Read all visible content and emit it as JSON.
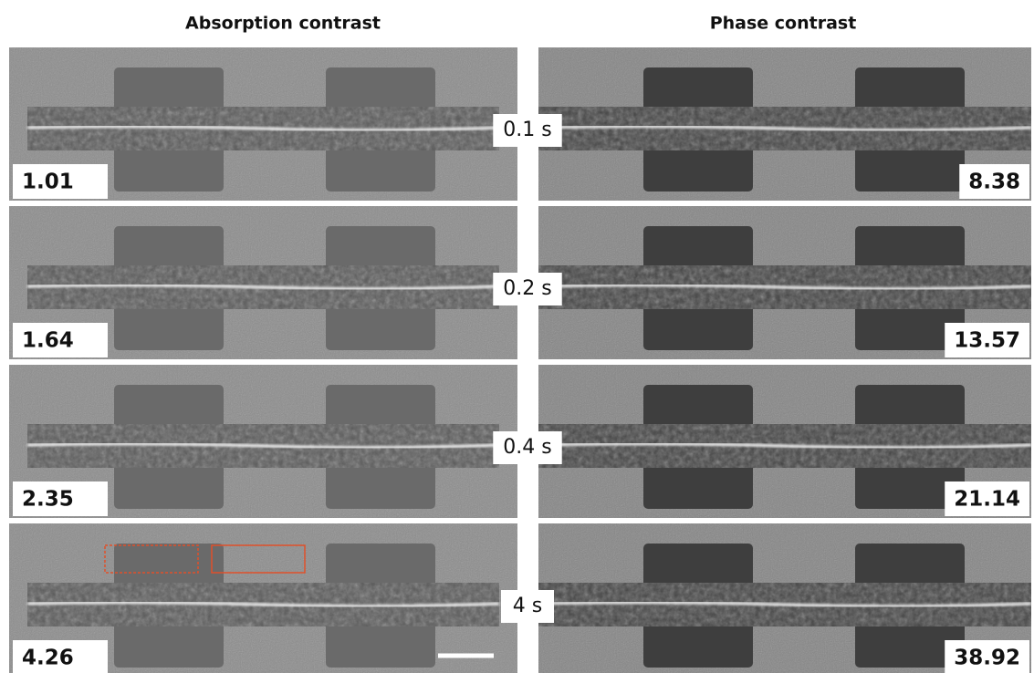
{
  "header": {
    "left_title": "Absorption contrast",
    "right_title": "Phase contrast"
  },
  "rows": [
    {
      "time": "0.1 s",
      "absorption": 1.01,
      "phase": 8.38
    },
    {
      "time": "0.2 s",
      "absorption": 1.64,
      "phase": 13.57
    },
    {
      "time": "0.4 s",
      "absorption": 2.35,
      "phase": 21.14
    },
    {
      "time": "4 s",
      "absorption": 4.26,
      "phase": 38.92
    }
  ]
}
